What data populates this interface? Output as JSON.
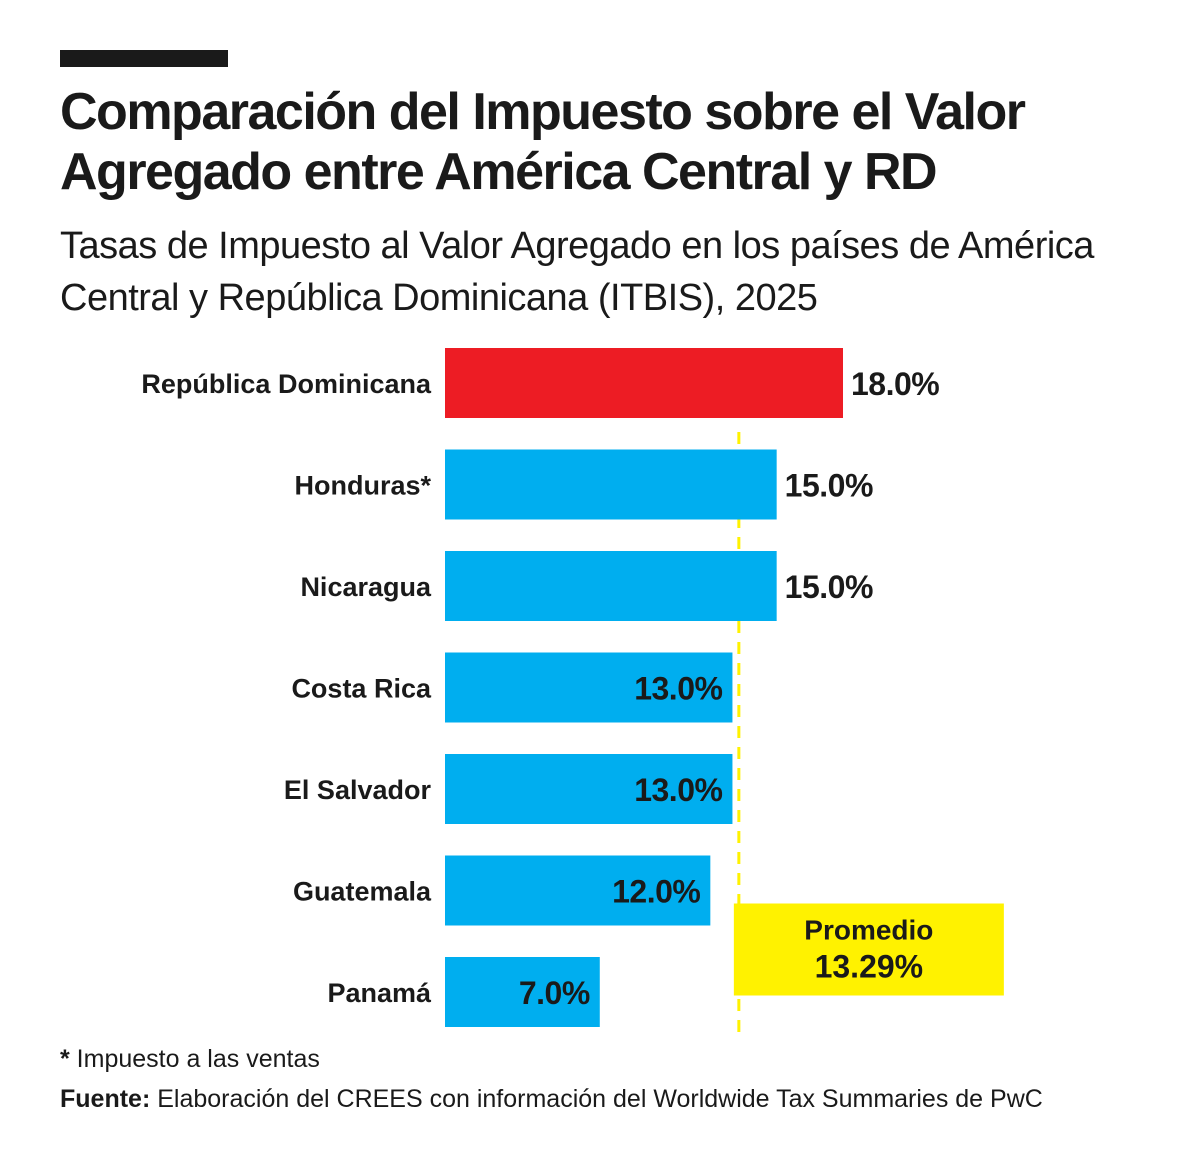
{
  "title": "Comparación del Impuesto sobre el Valor Agregado entre América Central y RD",
  "subtitle": "Tasas de Impuesto al Valor Agregado en los países de América Central y República Dominicana (ITBIS), 2025",
  "chart_data": {
    "type": "bar",
    "orientation": "horizontal",
    "categories": [
      "República Dominicana",
      "Honduras*",
      "Nicaragua",
      "Costa Rica",
      "El Salvador",
      "Guatemala",
      "Panamá"
    ],
    "values": [
      18.0,
      15.0,
      15.0,
      13.0,
      13.0,
      12.0,
      7.0
    ],
    "value_labels": [
      "18.0%",
      "15.0%",
      "15.0%",
      "13.0%",
      "13.0%",
      "12.0%",
      "7.0%"
    ],
    "highlight_index": 0,
    "average": 13.29,
    "average_label_title": "Promedio",
    "average_label_value": "13.29%",
    "xlim": [
      0,
      18.0
    ],
    "grid": false,
    "colors": {
      "highlight": "#ED1C24",
      "bar": "#00AEEF",
      "average_box": "#FFF200",
      "average_line": "#FFF200"
    }
  },
  "footnote": {
    "mark": "*",
    "text": " Impuesto a las ventas"
  },
  "source": {
    "label": "Fuente:",
    "text": " Elaboración del CREES con información del Worldwide Tax Summaries de PwC"
  }
}
